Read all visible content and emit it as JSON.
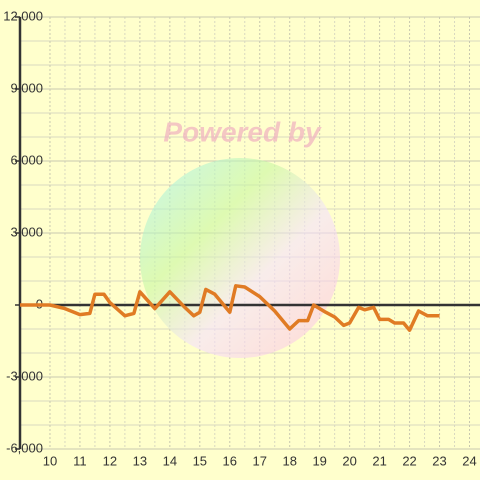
{
  "chart_data": {
    "type": "line",
    "watermark": "Powered by",
    "x": [
      9,
      9.5,
      10,
      10.5,
      11,
      11.33,
      11.5,
      11.8,
      12,
      12.5,
      12.8,
      13,
      13.5,
      14,
      14.5,
      14.8,
      15,
      15.2,
      15.5,
      16,
      16.2,
      16.5,
      17,
      17.5,
      18,
      18.3,
      18.6,
      18.8,
      19.2,
      19.5,
      19.8,
      20,
      20.3,
      20.5,
      20.8,
      21,
      21.3,
      21.5,
      21.8,
      22,
      22.3,
      22.6,
      23
    ],
    "series": [
      {
        "color": "#e07b24",
        "values": [
          0,
          0,
          0,
          -150,
          -400,
          -350,
          450,
          450,
          100,
          -450,
          -350,
          550,
          -150,
          550,
          -100,
          -450,
          -300,
          650,
          450,
          -300,
          800,
          750,
          350,
          -250,
          -1000,
          -650,
          -650,
          0,
          -300,
          -500,
          -850,
          -750,
          -100,
          -200,
          -100,
          -600,
          -600,
          -750,
          -750,
          -1050,
          -250,
          -450,
          -450
        ]
      }
    ],
    "xlim": [
      9,
      24.35
    ],
    "xticks": [
      10,
      11,
      12,
      13,
      14,
      15,
      16,
      17,
      18,
      19,
      20,
      21,
      22,
      23,
      24
    ],
    "ylim": [
      -6000,
      12000
    ],
    "yticks": [
      {
        "value": -6000,
        "label": "-6,000"
      },
      {
        "value": -3000,
        "label": "-3,000"
      },
      0,
      {
        "value": 3000,
        "label": "3,000"
      },
      {
        "value": 6000,
        "label": "6,000"
      },
      {
        "value": 9000,
        "label": "9,000"
      },
      {
        "value": 12000,
        "label": "12,000"
      }
    ],
    "grid": true
  }
}
